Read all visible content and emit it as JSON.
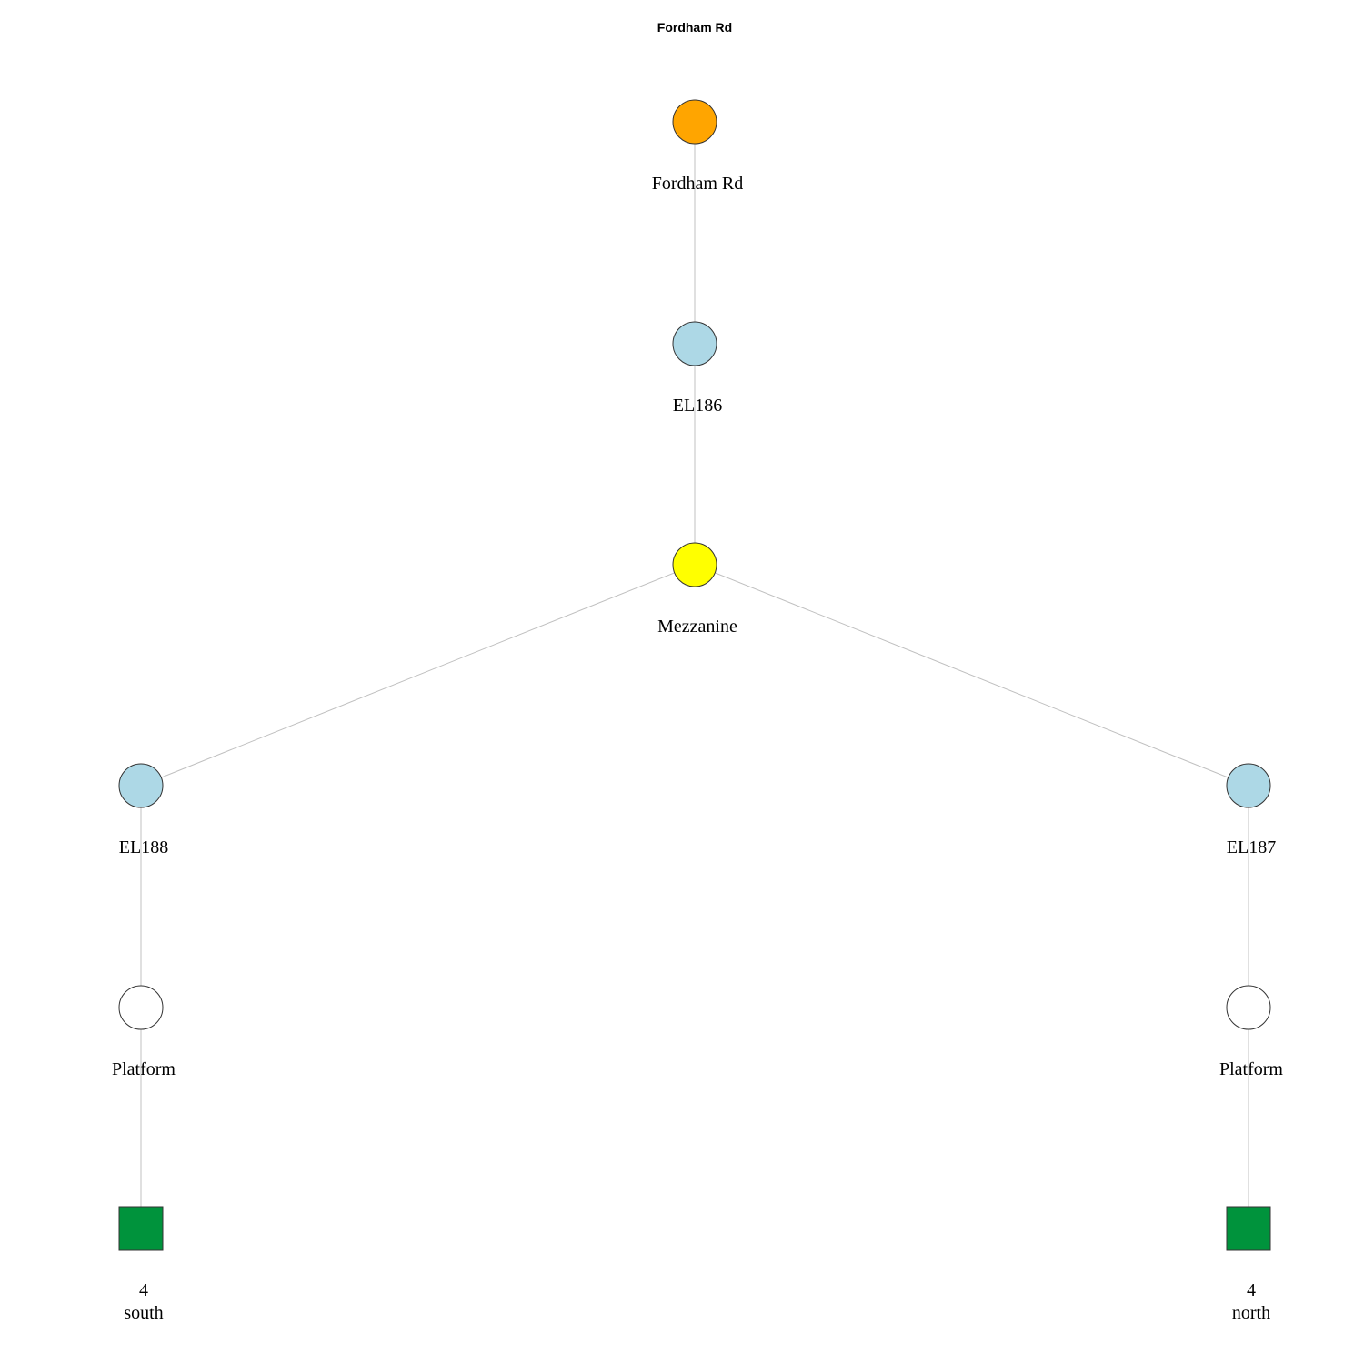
{
  "title": "Fordham Rd",
  "nodes": [
    {
      "id": "station",
      "name": "node-station",
      "shape": "circle",
      "color": "#FFA500",
      "label_lines": [
        "Fordham Rd"
      ]
    },
    {
      "id": "el186",
      "name": "node-el186",
      "shape": "circle",
      "color": "#ADD8E6",
      "label_lines": [
        "EL186"
      ]
    },
    {
      "id": "mezzanine",
      "name": "node-mezzanine",
      "shape": "circle",
      "color": "#FFFF00",
      "label_lines": [
        "Mezzanine"
      ]
    },
    {
      "id": "el188",
      "name": "node-el188",
      "shape": "circle",
      "color": "#ADD8E6",
      "label_lines": [
        "EL188"
      ]
    },
    {
      "id": "el187",
      "name": "node-el187",
      "shape": "circle",
      "color": "#ADD8E6",
      "label_lines": [
        "EL187"
      ]
    },
    {
      "id": "platform_s",
      "name": "node-platform-south",
      "shape": "circle",
      "color": "#FFFFFF",
      "label_lines": [
        "Platform"
      ]
    },
    {
      "id": "platform_n",
      "name": "node-platform-north",
      "shape": "circle",
      "color": "#FFFFFF",
      "label_lines": [
        "Platform"
      ]
    },
    {
      "id": "route_s",
      "name": "node-route-4-south",
      "shape": "square",
      "color": "#00933C",
      "label_lines": [
        "4",
        "south"
      ]
    },
    {
      "id": "route_n",
      "name": "node-route-4-north",
      "shape": "square",
      "color": "#00933C",
      "label_lines": [
        "4",
        "north"
      ]
    }
  ],
  "edges": [
    [
      "station",
      "el186"
    ],
    [
      "el186",
      "mezzanine"
    ],
    [
      "mezzanine",
      "el188"
    ],
    [
      "mezzanine",
      "el187"
    ],
    [
      "el188",
      "platform_s"
    ],
    [
      "el187",
      "platform_n"
    ],
    [
      "platform_s",
      "route_s"
    ],
    [
      "platform_n",
      "route_n"
    ]
  ]
}
